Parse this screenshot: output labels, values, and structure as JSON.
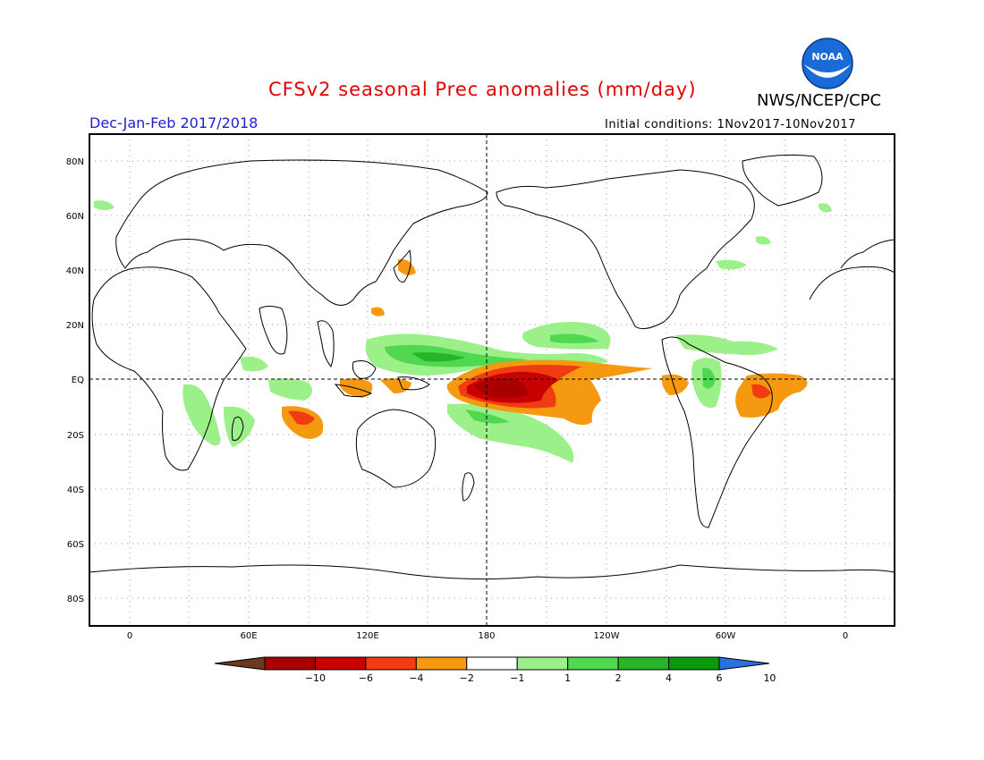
{
  "header": {
    "title": "CFSv2 seasonal Prec anomalies (mm/day)",
    "season": "Dec-Jan-Feb 2017/2018",
    "agency": "NWS/NCEP/CPC",
    "initial_conditions": "Initial conditions: 1Nov2017-10Nov2017",
    "logo_text": "NOAA"
  },
  "map": {
    "lat_labels": [
      "80N",
      "60N",
      "40N",
      "20N",
      "EQ",
      "20S",
      "40S",
      "60S",
      "80S"
    ],
    "lon_labels": [
      "0",
      "60E",
      "120E",
      "180",
      "120W",
      "60W",
      "0"
    ]
  },
  "colorbar": {
    "labels": [
      "-10",
      "-6",
      "-4",
      "-2",
      "-1",
      "1",
      "2",
      "4",
      "6",
      "10"
    ],
    "colors": [
      "#6b3a1e",
      "#a80000",
      "#c80000",
      "#f03c10",
      "#f59a10",
      "#ffffff",
      "#9bf08a",
      "#50d850",
      "#28b428",
      "#0a9a0a",
      "#2a70e0"
    ]
  },
  "regions": [
    {
      "name": "central-pacific-dry",
      "color": "#f59a10"
    },
    {
      "name": "central-pacific-dry-core",
      "color": "#c80000"
    },
    {
      "name": "west-pacific-wet",
      "color": "#50d850"
    },
    {
      "name": "brazil-dry",
      "color": "#f59a10"
    },
    {
      "name": "southern-africa-wet",
      "color": "#9bf08a"
    }
  ]
}
